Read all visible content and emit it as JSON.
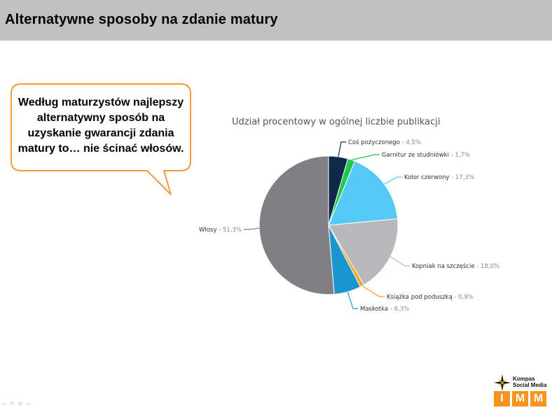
{
  "header": {
    "title": "Alternatywne sposoby na zdanie matury"
  },
  "callout": {
    "lines": [
      "Według maturzystów najlepszy",
      "alternatywny sposób na",
      "uzyskanie gwarancji zdania",
      "matury to… nie ścinać włosów."
    ]
  },
  "logo": {
    "line1": "Kompas",
    "line2": "Social Media",
    "letters": [
      "I",
      "M",
      "M"
    ]
  },
  "colors": {
    "accent": "#f39a3c",
    "header_bg": "#c0c0c0"
  },
  "chart_data": {
    "type": "pie",
    "title": "Udział procentowy w ogólnej liczbie publikacji",
    "slices": [
      {
        "label": "Coś pożyczonego",
        "value": 4.5,
        "value_label": "4,5%",
        "color": "#0e2a4b"
      },
      {
        "label": "Garnitur ze studniówki",
        "value": 1.7,
        "value_label": "1,7%",
        "color": "#1fc74a"
      },
      {
        "label": "Kolor czerwony",
        "value": 17.3,
        "value_label": "17,3%",
        "color": "#56c8f5"
      },
      {
        "label": "Kopniak na szczęście",
        "value": 18.0,
        "value_label": "18,0%",
        "color": "#b9b9bc"
      },
      {
        "label": "Książka pod poduszką",
        "value": 0.9,
        "value_label": "0,9%",
        "color": "#f7a21b"
      },
      {
        "label": "Maskotka",
        "value": 6.3,
        "value_label": "6,3%",
        "color": "#1a95cf"
      },
      {
        "label": "Włosy",
        "value": 51.3,
        "value_label": "51,3%",
        "color": "#808084"
      }
    ]
  }
}
